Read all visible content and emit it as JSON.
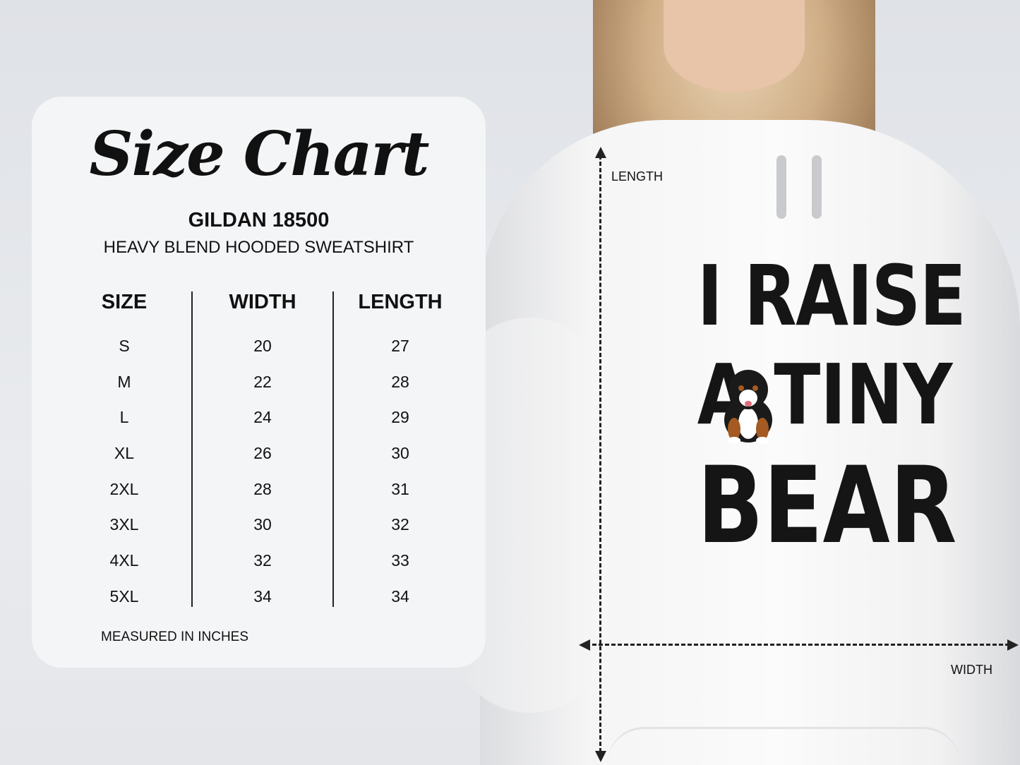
{
  "size_chart": {
    "title": "Size Chart",
    "model": "GILDAN 18500",
    "product": "HEAVY BLEND HOODED SWEATSHIRT",
    "headers": [
      "SIZE",
      "WIDTH",
      "LENGTH"
    ],
    "sizes": [
      "S",
      "M",
      "L",
      "XL",
      "2XL",
      "3XL",
      "4XL",
      "5XL"
    ],
    "widths": [
      "20",
      "22",
      "24",
      "26",
      "28",
      "30",
      "32",
      "34"
    ],
    "lengths": [
      "27",
      "28",
      "29",
      "30",
      "31",
      "32",
      "33",
      "34"
    ],
    "note": "MEASURED IN INCHES"
  },
  "garment": {
    "print_lines": [
      "I RAISE",
      "A TINY",
      "BEAR"
    ],
    "length_label": "LENGTH",
    "width_label": "WIDTH"
  }
}
